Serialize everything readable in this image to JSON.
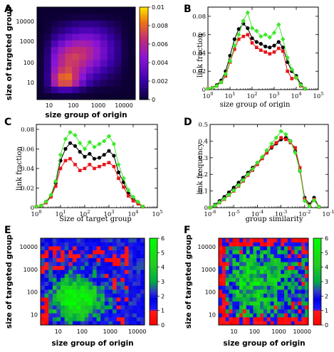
{
  "panels": {
    "A": {
      "label": "A"
    },
    "B": {
      "label": "B"
    },
    "C": {
      "label": "C"
    },
    "D": {
      "label": "D"
    },
    "E": {
      "label": "E"
    },
    "F": {
      "label": "F"
    }
  },
  "colors": {
    "black": "#000000",
    "red": "#e8151a",
    "green": "#3ee82a",
    "heat_low": "#1a0066",
    "heat_high": "#ffe600"
  },
  "chart_data": [
    {
      "id": "A",
      "type": "heatmap",
      "xlabel": "size group of origin",
      "ylabel": "size of targeted group",
      "xticks": [
        "10",
        "100",
        "1000",
        "10000"
      ],
      "yticks": [
        "10",
        "100",
        "1000",
        "10000"
      ],
      "colorbar": {
        "min": 0,
        "max": 0.01,
        "ticks": [
          "0.01",
          "0.008",
          "0.006",
          "0.004",
          "0.002",
          "0"
        ]
      },
      "log_x": true,
      "log_y": true,
      "grid": false
    },
    {
      "id": "B",
      "type": "line",
      "xlabel": "size group of origin",
      "ylabel": "link fraction",
      "log_x": true,
      "xlim": [
        1,
        100000
      ],
      "ylim": [
        0,
        0.09
      ],
      "xticks": [
        {
          "base": "10",
          "exp": "0"
        },
        {
          "base": "10",
          "exp": "1"
        },
        {
          "base": "10",
          "exp": "2"
        },
        {
          "base": "10",
          "exp": "3"
        },
        {
          "base": "10",
          "exp": "4"
        },
        {
          "base": "10",
          "exp": "5"
        }
      ],
      "yticks": [
        "0",
        "0.02",
        "0.04",
        "0.06",
        "0.08"
      ],
      "x": [
        1,
        1.6,
        2.5,
        4,
        6.3,
        10,
        16,
        25,
        40,
        63,
        100,
        160,
        250,
        400,
        630,
        1000,
        1600,
        2500,
        4000,
        6300,
        10000,
        16000,
        25000
      ],
      "series": [
        {
          "color": "black",
          "marker": "circle",
          "values": [
            0.001,
            0.002,
            0.005,
            0.01,
            0.02,
            0.037,
            0.055,
            0.066,
            0.072,
            0.067,
            0.056,
            0.052,
            0.05,
            0.047,
            0.046,
            0.048,
            0.052,
            0.046,
            0.03,
            0.02,
            0.015,
            0.006,
            0.001
          ]
        },
        {
          "color": "red",
          "marker": "square",
          "values": [
            0.001,
            0.002,
            0.004,
            0.008,
            0.015,
            0.03,
            0.044,
            0.055,
            0.058,
            0.06,
            0.051,
            0.046,
            0.043,
            0.041,
            0.039,
            0.041,
            0.045,
            0.042,
            0.02,
            0.012,
            0.013,
            0.004,
            0.001
          ]
        },
        {
          "color": "green",
          "marker": "diamond",
          "values": [
            0.001,
            0.002,
            0.004,
            0.008,
            0.017,
            0.031,
            0.048,
            0.06,
            0.075,
            0.084,
            0.067,
            0.064,
            0.058,
            0.06,
            0.057,
            0.062,
            0.071,
            0.055,
            0.035,
            0.022,
            0.013,
            0.005,
            0.001
          ]
        }
      ]
    },
    {
      "id": "C",
      "type": "line",
      "xlabel": "Size of target group",
      "ylabel": "link fraction",
      "log_x": true,
      "xlim": [
        1,
        100000
      ],
      "ylim": [
        0,
        0.085
      ],
      "xticks": [
        {
          "base": "10",
          "exp": "0"
        },
        {
          "base": "10",
          "exp": "1"
        },
        {
          "base": "10",
          "exp": "2"
        },
        {
          "base": "10",
          "exp": "3"
        },
        {
          "base": "10",
          "exp": "4"
        },
        {
          "base": "10",
          "exp": "5"
        }
      ],
      "yticks": [
        "0",
        "0.02",
        "0.04",
        "0.06",
        "0.08"
      ],
      "x": [
        1,
        1.6,
        2.5,
        4,
        6.3,
        10,
        16,
        25,
        40,
        63,
        100,
        160,
        250,
        400,
        630,
        1000,
        1600,
        2500,
        4000,
        6300,
        10000,
        16000,
        25000
      ],
      "series": [
        {
          "color": "black",
          "marker": "circle",
          "values": [
            0.001,
            0.002,
            0.006,
            0.012,
            0.025,
            0.048,
            0.06,
            0.066,
            0.063,
            0.057,
            0.052,
            0.055,
            0.05,
            0.051,
            0.054,
            0.058,
            0.053,
            0.036,
            0.026,
            0.015,
            0.009,
            0.005,
            0.001
          ]
        },
        {
          "color": "red",
          "marker": "square",
          "values": [
            0.001,
            0.002,
            0.005,
            0.011,
            0.022,
            0.04,
            0.048,
            0.05,
            0.044,
            0.038,
            0.04,
            0.044,
            0.04,
            0.042,
            0.044,
            0.046,
            0.042,
            0.03,
            0.021,
            0.012,
            0.007,
            0.004,
            0.001
          ]
        },
        {
          "color": "green",
          "marker": "diamond",
          "values": [
            0.001,
            0.002,
            0.006,
            0.013,
            0.027,
            0.054,
            0.07,
            0.077,
            0.074,
            0.066,
            0.06,
            0.067,
            0.062,
            0.065,
            0.068,
            0.073,
            0.065,
            0.044,
            0.03,
            0.018,
            0.011,
            0.006,
            0.001
          ]
        }
      ]
    },
    {
      "id": "D",
      "type": "line",
      "xlabel": "group similarity",
      "ylabel": "link frequency",
      "log_x": true,
      "xlim": [
        1e-06,
        0.1
      ],
      "ylim": [
        0,
        0.5
      ],
      "xticks": [
        {
          "base": "10",
          "exp": "-6"
        },
        {
          "base": "10",
          "exp": "-5"
        },
        {
          "base": "10",
          "exp": "-4"
        },
        {
          "base": "10",
          "exp": "-3"
        },
        {
          "base": "10",
          "exp": "-2"
        },
        {
          "base": "10",
          "exp": "-1"
        }
      ],
      "yticks": [
        "0",
        "0.1",
        "0.2",
        "0.3",
        "0.4",
        "0.5"
      ],
      "x": [
        1e-06,
        1.6e-06,
        2.5e-06,
        4e-06,
        6.3e-06,
        1e-05,
        1.6e-05,
        2.5e-05,
        4e-05,
        6.3e-05,
        0.0001,
        0.00016,
        0.00025,
        0.0004,
        0.00063,
        0.001,
        0.0016,
        0.0025,
        0.004,
        0.0063,
        0.01,
        0.016,
        0.025,
        0.04
      ],
      "series": [
        {
          "color": "black",
          "marker": "circle",
          "values": [
            0.0,
            0.018,
            0.04,
            0.065,
            0.092,
            0.12,
            0.15,
            0.18,
            0.21,
            0.24,
            0.27,
            0.3,
            0.33,
            0.36,
            0.385,
            0.41,
            0.42,
            0.4,
            0.34,
            0.22,
            0.06,
            0.02,
            0.06,
            0.005
          ]
        },
        {
          "color": "red",
          "marker": "square",
          "values": [
            0.0,
            0.012,
            0.03,
            0.05,
            0.075,
            0.1,
            0.13,
            0.16,
            0.195,
            0.225,
            0.26,
            0.295,
            0.33,
            0.365,
            0.39,
            0.42,
            0.41,
            0.39,
            0.36,
            0.24,
            0.05,
            0.01,
            0.05,
            0.004
          ]
        },
        {
          "color": "green",
          "marker": "diamond",
          "values": [
            0.0,
            0.013,
            0.032,
            0.053,
            0.078,
            0.104,
            0.135,
            0.166,
            0.2,
            0.232,
            0.27,
            0.305,
            0.345,
            0.385,
            0.42,
            0.46,
            0.44,
            0.4,
            0.33,
            0.22,
            0.04,
            0.008,
            0.045,
            0.004
          ]
        }
      ]
    },
    {
      "id": "E",
      "type": "heatmap",
      "xlabel": "size group of origin",
      "ylabel": "size of targeted group",
      "xticks": [
        "10",
        "100",
        "1000",
        "10000"
      ],
      "yticks": [
        "10",
        "100",
        "1000",
        "10000"
      ],
      "colorbar": {
        "min": 0,
        "max": 6,
        "ticks": [
          "6",
          "5",
          "4",
          "3",
          "2",
          "1",
          "0"
        ]
      },
      "log_x": true,
      "log_y": true,
      "grid": false
    },
    {
      "id": "F",
      "type": "heatmap",
      "xlabel": "size group of origin",
      "ylabel": "size of targeted group",
      "xticks": [
        "10",
        "100",
        "1000",
        "10000"
      ],
      "yticks": [
        "10",
        "100",
        "1000",
        "10000"
      ],
      "colorbar": {
        "min": 0,
        "max": 6,
        "ticks": [
          "6",
          "5",
          "4",
          "3",
          "2",
          "1",
          "0"
        ]
      },
      "log_x": true,
      "log_y": true,
      "grid": false
    }
  ]
}
